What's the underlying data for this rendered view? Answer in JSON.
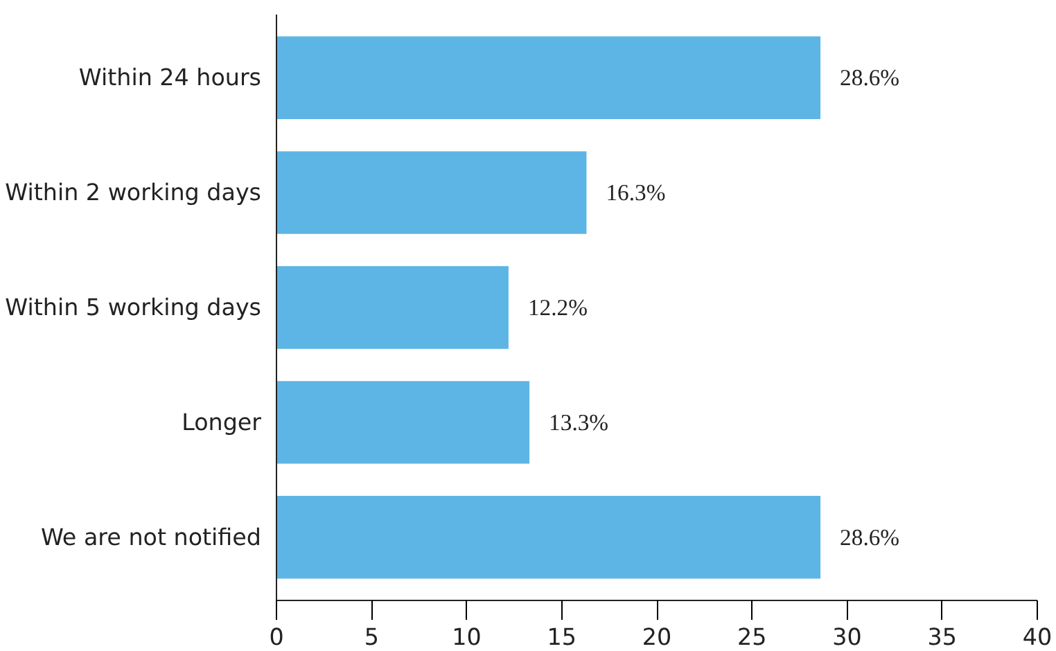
{
  "chart_data": {
    "type": "bar",
    "orientation": "horizontal",
    "categories": [
      "Within 24 hours",
      "Within 2 working days",
      "Within 5 working days",
      "Longer",
      "We are not notified"
    ],
    "values": [
      28.6,
      16.3,
      12.2,
      13.3,
      28.6
    ],
    "value_labels": [
      "28.6%",
      "16.3%",
      "12.2%",
      "13.3%",
      "28.6%"
    ],
    "color": "#5db5e5",
    "xlim": [
      0,
      40
    ],
    "xticks": [
      0,
      5,
      10,
      15,
      20,
      25,
      30,
      35,
      40
    ],
    "grid": false
  }
}
